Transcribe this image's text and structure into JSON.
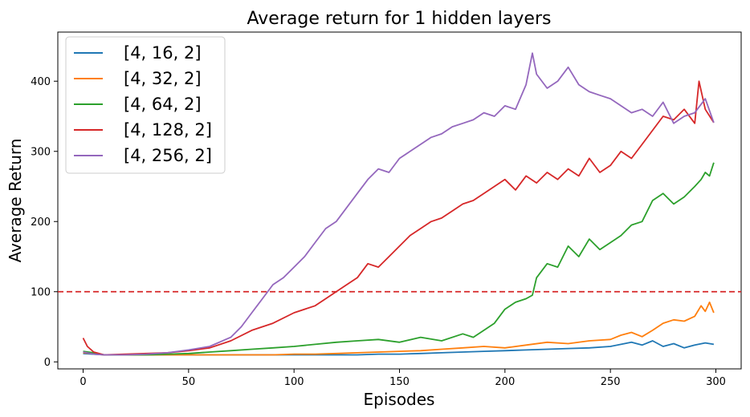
{
  "chart_data": {
    "type": "line",
    "title": "Average return for 1 hidden layers",
    "xlabel": "Episodes",
    "ylabel": "Average Return",
    "xlim": [
      -12,
      312
    ],
    "ylim": [
      -10,
      470
    ],
    "xticks": [
      0,
      50,
      100,
      150,
      200,
      250,
      300
    ],
    "yticks": [
      0,
      100,
      200,
      300,
      400
    ],
    "legend_position": "top-left",
    "threshold": {
      "value": 100,
      "color": "#d62728",
      "style": "dashed"
    },
    "series": [
      {
        "name": "[4, 16, 2]",
        "color": "#1f77b4",
        "x": [
          0,
          10,
          20,
          30,
          40,
          50,
          60,
          70,
          80,
          90,
          100,
          110,
          120,
          130,
          140,
          150,
          160,
          170,
          180,
          190,
          200,
          210,
          220,
          230,
          240,
          250,
          255,
          260,
          265,
          270,
          275,
          280,
          285,
          290,
          295,
          299
        ],
        "y": [
          12,
          10,
          10,
          10,
          10,
          10,
          10,
          10,
          10,
          10,
          10,
          10,
          10,
          10,
          11,
          11,
          12,
          13,
          14,
          15,
          16,
          17,
          18,
          19,
          20,
          22,
          25,
          28,
          24,
          30,
          22,
          26,
          20,
          24,
          27,
          25
        ]
      },
      {
        "name": "[4, 32, 2]",
        "color": "#ff7f0e",
        "x": [
          0,
          10,
          20,
          30,
          40,
          50,
          60,
          70,
          80,
          90,
          100,
          110,
          120,
          130,
          140,
          150,
          160,
          170,
          180,
          190,
          200,
          210,
          220,
          230,
          240,
          250,
          255,
          260,
          265,
          270,
          275,
          280,
          285,
          290,
          293,
          295,
          297,
          299
        ],
        "y": [
          13,
          10,
          10,
          10,
          10,
          10,
          10,
          10,
          10,
          10,
          11,
          11,
          12,
          13,
          14,
          15,
          16,
          18,
          20,
          22,
          20,
          24,
          28,
          26,
          30,
          32,
          38,
          42,
          36,
          45,
          55,
          60,
          58,
          65,
          80,
          72,
          85,
          70
        ]
      },
      {
        "name": "[4, 64, 2]",
        "color": "#2ca02c",
        "x": [
          0,
          5,
          10,
          20,
          30,
          40,
          50,
          60,
          70,
          80,
          90,
          100,
          110,
          120,
          130,
          140,
          150,
          160,
          170,
          180,
          185,
          190,
          195,
          200,
          205,
          210,
          213,
          215,
          220,
          225,
          230,
          235,
          240,
          245,
          250,
          255,
          260,
          265,
          270,
          275,
          280,
          285,
          290,
          293,
          295,
          297,
          299
        ],
        "y": [
          15,
          13,
          10,
          10,
          10,
          11,
          12,
          14,
          16,
          18,
          20,
          22,
          25,
          28,
          30,
          32,
          28,
          35,
          30,
          40,
          35,
          45,
          55,
          75,
          85,
          90,
          95,
          120,
          140,
          135,
          165,
          150,
          175,
          160,
          170,
          180,
          195,
          200,
          230,
          240,
          225,
          235,
          250,
          260,
          270,
          265,
          284
        ]
      },
      {
        "name": "[4, 128, 2]",
        "color": "#d62728",
        "x": [
          0,
          2,
          5,
          10,
          20,
          30,
          40,
          50,
          60,
          70,
          80,
          90,
          100,
          110,
          115,
          120,
          125,
          130,
          135,
          140,
          145,
          150,
          155,
          160,
          165,
          170,
          175,
          180,
          185,
          190,
          195,
          200,
          205,
          210,
          215,
          220,
          225,
          230,
          235,
          240,
          245,
          250,
          255,
          260,
          265,
          270,
          275,
          280,
          285,
          290,
          292,
          295,
          299
        ],
        "y": [
          34,
          22,
          14,
          10,
          11,
          12,
          13,
          16,
          20,
          30,
          45,
          55,
          70,
          80,
          90,
          100,
          110,
          120,
          140,
          135,
          150,
          165,
          180,
          190,
          200,
          205,
          215,
          225,
          230,
          240,
          250,
          260,
          245,
          265,
          255,
          270,
          260,
          275,
          265,
          290,
          270,
          280,
          300,
          290,
          310,
          330,
          350,
          345,
          360,
          340,
          400,
          360,
          341
        ]
      },
      {
        "name": "[4, 256, 2]",
        "color": "#9467bd",
        "x": [
          0,
          5,
          10,
          20,
          30,
          40,
          50,
          60,
          70,
          75,
          80,
          85,
          90,
          95,
          100,
          105,
          110,
          115,
          120,
          125,
          130,
          135,
          140,
          145,
          150,
          155,
          160,
          165,
          170,
          175,
          180,
          185,
          190,
          195,
          200,
          205,
          210,
          213,
          215,
          220,
          225,
          230,
          235,
          240,
          245,
          250,
          255,
          260,
          265,
          270,
          275,
          280,
          285,
          290,
          295,
          299
        ],
        "y": [
          14,
          11,
          10,
          10,
          11,
          13,
          17,
          22,
          35,
          50,
          70,
          90,
          110,
          120,
          135,
          150,
          170,
          190,
          200,
          220,
          240,
          260,
          275,
          270,
          290,
          300,
          310,
          320,
          325,
          335,
          340,
          345,
          355,
          350,
          365,
          360,
          395,
          440,
          410,
          390,
          400,
          420,
          395,
          385,
          380,
          375,
          365,
          355,
          360,
          350,
          370,
          340,
          350,
          355,
          375,
          341
        ]
      }
    ]
  }
}
